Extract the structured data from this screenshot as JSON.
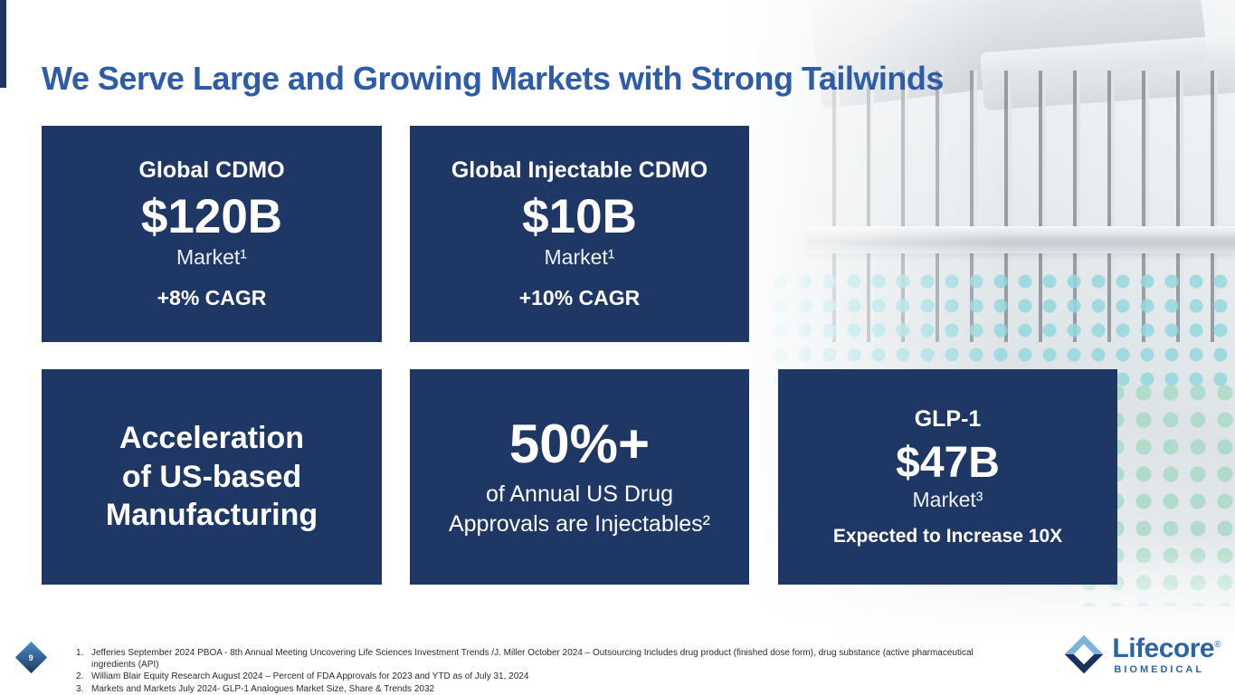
{
  "title": "We Serve Large and Growing Markets with Strong Tailwinds",
  "page_number": "9",
  "cards": {
    "global_cdmo": {
      "heading": "Global CDMO",
      "value": "$120B",
      "label": "Market¹",
      "growth": "+8% CAGR"
    },
    "injectable_cdmo": {
      "heading": "Global Injectable CDMO",
      "value": "$10B",
      "label": "Market¹",
      "growth": "+10% CAGR"
    },
    "us_manufacturing": {
      "line1": "Acceleration",
      "line2": "of US-based",
      "line3": "Manufacturing"
    },
    "injectables_share": {
      "value": "50%+",
      "line1": "of Annual US Drug",
      "line2": "Approvals are Injectables²"
    },
    "glp1": {
      "heading": "GLP-1",
      "value": "$47B",
      "label": "Market³",
      "growth": "Expected to Increase 10X"
    }
  },
  "footnotes": [
    {
      "num": "1.",
      "text": "Jefferies September 2024 PBOA - 8th Annual Meeting Uncovering Life Sciences Investment Trends /J. Miller October 2024 – Outsourcing  Includes drug product (finished dose form), drug substance (active pharmaceutical ingredients (API)"
    },
    {
      "num": "2.",
      "text": "William Blair Equity Research August 2024 – Percent of FDA Approvals for 2023 and YTD as of July 31, 2024"
    },
    {
      "num": "3.",
      "text": "Markets and Markets July 2024-  GLP-1 Analogues Market Size, Share & Trends 2032"
    }
  ],
  "logo": {
    "brand": "Lifecore",
    "registered": "®",
    "tagline": "BIOMEDICAL"
  },
  "colors": {
    "title_blue": "#2d5ca8",
    "card_navy": "#1e3765",
    "vial_teal": "#94d8de"
  }
}
